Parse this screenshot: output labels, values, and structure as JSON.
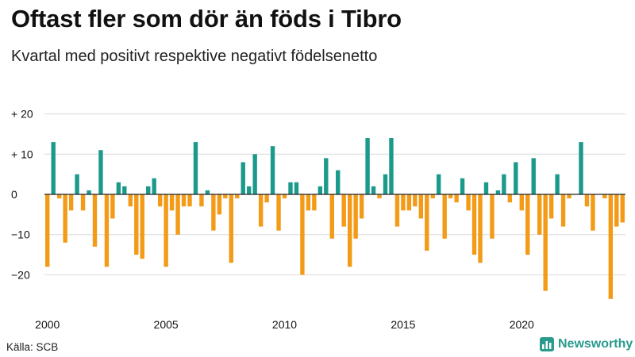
{
  "title": "Oftast fler som dör än föds i Tibro",
  "subtitle": "Kvartal med positivt respektive negativt födelsenetto",
  "source": "Källa: SCB",
  "brand": {
    "name": "Newsworthy",
    "icon": "bar-chart-icon"
  },
  "colors": {
    "positive": "#1b9a8c",
    "negative": "#f39a16",
    "zero_line": "#222222",
    "grid": "#d9d9d9"
  },
  "chart_data": {
    "type": "bar",
    "title": "Oftast fler som dör än föds i Tibro",
    "subtitle": "Kvartal med positivt respektive negativt födelsenetto",
    "xlabel": "",
    "ylabel": "",
    "ylim": [
      -28,
      20
    ],
    "y_ticks": [
      {
        "value": 20,
        "label": "+ 20"
      },
      {
        "value": 10,
        "label": "+ 10"
      },
      {
        "value": 0,
        "label": "0"
      },
      {
        "value": -10,
        "label": "−10"
      },
      {
        "value": -20,
        "label": "−20"
      }
    ],
    "x_ticks": [
      {
        "index": 0,
        "label": "2000"
      },
      {
        "index": 20,
        "label": "2005"
      },
      {
        "index": 40,
        "label": "2010"
      },
      {
        "index": 60,
        "label": "2015"
      },
      {
        "index": 80,
        "label": "2020"
      }
    ],
    "start": "2000 Q1",
    "frequency": "quarter",
    "values": [
      -18,
      13,
      -1,
      -12,
      -4,
      5,
      -4,
      1,
      -13,
      11,
      -18,
      -6,
      3,
      2,
      -3,
      -15,
      -16,
      2,
      4,
      -3,
      -18,
      -4,
      -10,
      -3,
      -3,
      13,
      -3,
      1,
      -9,
      -5,
      -1,
      -17,
      -1,
      8,
      2,
      10,
      -8,
      -2,
      12,
      -9,
      -1,
      3,
      3,
      -20,
      -4,
      -4,
      2,
      9,
      -11,
      6,
      -8,
      -18,
      -11,
      -6,
      14,
      2,
      -1,
      5,
      14,
      -8,
      -4,
      -4,
      -3,
      -6,
      -14,
      -1,
      5,
      -11,
      -1,
      -2,
      4,
      -4,
      -15,
      -17,
      3,
      -11,
      1,
      5,
      -2,
      8,
      -4,
      -15,
      9,
      -10,
      -24,
      -6,
      5,
      -8,
      -1,
      0,
      13,
      -3,
      -9,
      0,
      -1,
      -26,
      -8,
      -7
    ],
    "grid": true,
    "legend": "none"
  }
}
